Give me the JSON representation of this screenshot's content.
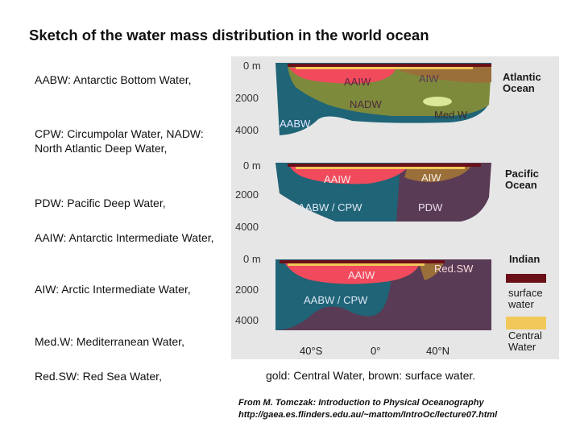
{
  "title": "Sketch of the water mass distribution in the world ocean",
  "legend": [
    "AABW: Antarctic Bottom Water,",
    "CPW: Circumpolar Water, NADW: North Atlantic Deep Water,",
    "PDW: Pacific Deep Water,",
    "AAIW: Antarctic Intermediate Water,",
    "AIW: Arctic Intermediate Water,",
    "Med.W: Mediterranean Water,",
    "Red.SW: Red Sea Water,"
  ],
  "figure": {
    "depths": [
      "0 m",
      "2000",
      "4000"
    ],
    "atlantic": {
      "ocean": "Atlantic\nOcean",
      "aaiw": "AAIW",
      "aiw": "AIW",
      "nadw": "NADW",
      "medw": "Med.W",
      "aabw": "AABW"
    },
    "pacific": {
      "ocean": "Pacific\nOcean",
      "aaiw": "AAIW",
      "aiw": "AIW",
      "aabw_cpw": "AABW / CPW",
      "pdw": "PDW"
    },
    "indian": {
      "ocean": "Indian",
      "aaiw": "AAIW",
      "redsw": "Red.SW",
      "aabw_cpw": "AABW / CPW"
    },
    "key": {
      "surface": "surface\nwater",
      "central": "Central\nWater"
    },
    "latitudes": [
      "40°S",
      "0°",
      "40°N"
    ]
  },
  "caption": "gold: Central Water, brown: surface water.",
  "source": [
    "From M. Tomczak: Introduction to Physical Oceanography",
    "http://gaea.es.flinders.edu.au/~mattom/IntroOc/lecture07.html"
  ],
  "colors": {
    "background": "#e6e6e6",
    "aabw": "#1f6477",
    "deep": "#5a3b55",
    "nadw": "#7e8a3b",
    "aaiw": "#f04a5c",
    "aiw": "#9b6f3a",
    "medw": "#dbe89a",
    "surface": "#6b1018",
    "central": "#f2c85a"
  }
}
